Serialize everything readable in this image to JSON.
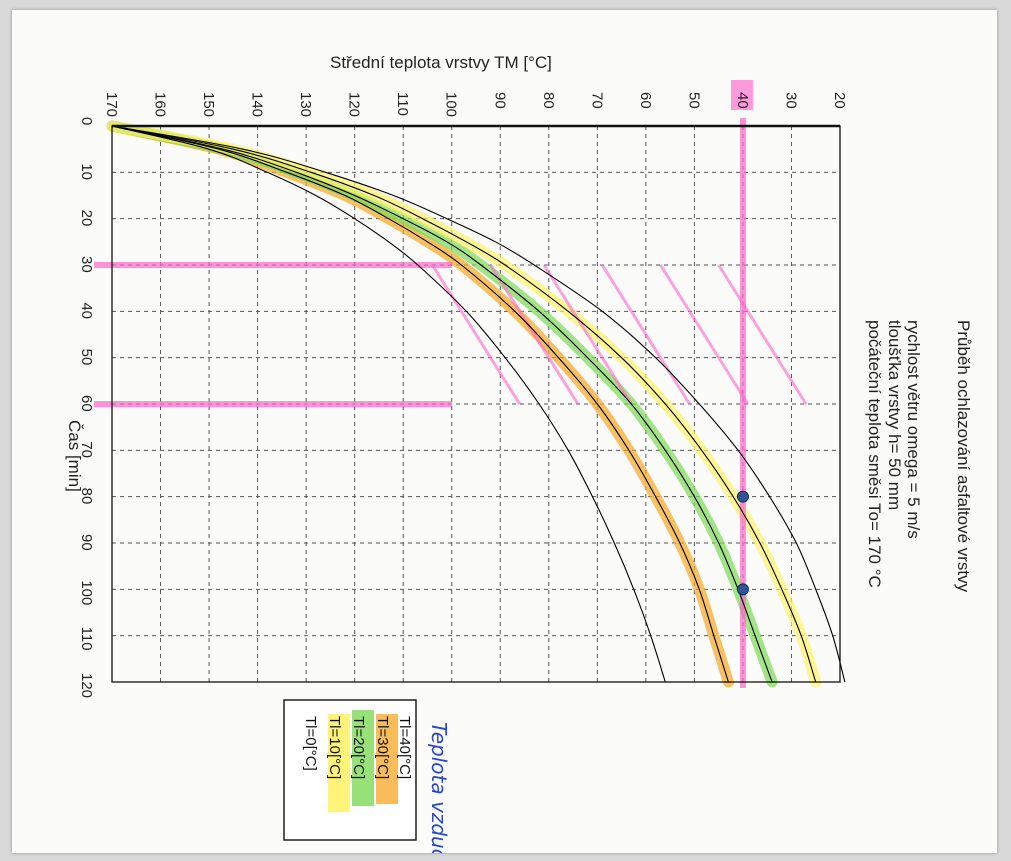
{
  "chart_data": {
    "type": "line",
    "title": "Průběh ochlazování asfaltové vrstvy",
    "subtitle_lines": [
      "rychlost větru omega = 5 m/s",
      "tloušťka vrstvy h= 50 mm",
      "počáteční teplota směsi To= 170 °C"
    ],
    "ylabel": "Střední teplota vrstvy TM [°C]",
    "xlabel": "Čas [min]",
    "orientation": "rotated 90° clockwise on page (time axis runs downward, temperature axis runs leftward)",
    "xlim": [
      0,
      120
    ],
    "ylim": [
      20,
      170
    ],
    "x_ticks": [
      "0",
      "10",
      "20",
      "30",
      "40",
      "50",
      "60",
      "70",
      "80",
      "90",
      "100",
      "110",
      "120"
    ],
    "y_ticks": [
      "20",
      "30",
      "40",
      "50",
      "60",
      "70",
      "80",
      "90",
      "100",
      "110",
      "120",
      "130",
      "140",
      "150",
      "160",
      "170"
    ],
    "grid": true,
    "legend_position": "bottom",
    "x": [
      0,
      5,
      10,
      15,
      20,
      25,
      30,
      40,
      50,
      60,
      70,
      80,
      90,
      100,
      110,
      120
    ],
    "series": [
      {
        "name": "Tl=40[°C]",
        "color": "#000000",
        "values": [
          170,
          150,
          138,
          128,
          120,
          113,
          107,
          97,
          89,
          82,
          76,
          71,
          66.5,
          62.5,
          59,
          56
        ]
      },
      {
        "name": "Tl=30[°C]",
        "color": "#000000",
        "highlight": "#f6a623",
        "values": [
          170,
          148,
          134,
          122,
          113,
          105,
          98,
          87,
          78,
          70,
          63.5,
          58,
          53,
          49,
          46,
          43
        ]
      },
      {
        "name": "Tl=20[°C]",
        "color": "#000000",
        "highlight": "#7ed957",
        "values": [
          170,
          147,
          132,
          120,
          110,
          101,
          94,
          82,
          72,
          63,
          56,
          50,
          45,
          41,
          37.5,
          34
        ]
      },
      {
        "name": "Tl=10[°C]",
        "color": "#000000",
        "highlight": "#fff26b",
        "values": [
          170,
          145,
          129,
          116,
          106,
          97,
          89,
          76,
          65,
          56,
          48.5,
          42,
          36.5,
          32,
          28,
          25
        ]
      },
      {
        "name": "Tl=0[°C]",
        "color": "#000000",
        "values": [
          170,
          143,
          126,
          112,
          101,
          91,
          83,
          69,
          58,
          49,
          41,
          34.5,
          29,
          25,
          21.5,
          19
        ]
      }
    ],
    "annotations": {
      "highlight_temperature": "40",
      "highlight_times": [
        30,
        60
      ],
      "points": [
        {
          "x": 80,
          "y": 40
        },
        {
          "x": 100,
          "y": 40
        }
      ],
      "hatching_color": "#ff66cc"
    },
    "handwritten_label": "Teplota vzduchu"
  }
}
